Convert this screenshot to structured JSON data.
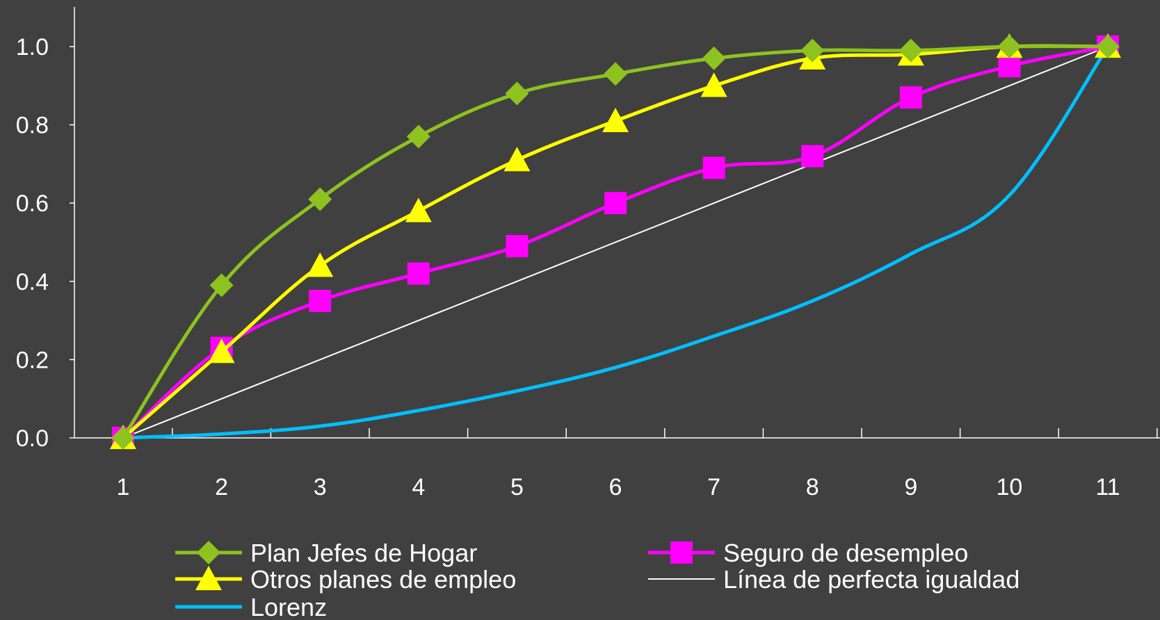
{
  "chart_data": {
    "type": "line",
    "title": "",
    "xlabel": "",
    "ylabel": "",
    "x": [
      1,
      2,
      3,
      4,
      5,
      6,
      7,
      8,
      9,
      10,
      11
    ],
    "xlim": [
      0.5,
      11.5
    ],
    "ylim": [
      0,
      1.0
    ],
    "yticks": [
      "0.0",
      "0.2",
      "0.4",
      "0.6",
      "0.8",
      "1.0"
    ],
    "xticks": [
      "1",
      "2",
      "3",
      "4",
      "5",
      "6",
      "7",
      "8",
      "9",
      "10",
      "11"
    ],
    "grid": false,
    "legend_placement": "bottom",
    "series": [
      {
        "name": "Plan Jefes de Hogar",
        "color": "#8DC21F",
        "marker": "diamond",
        "values": [
          0.0,
          0.39,
          0.61,
          0.77,
          0.88,
          0.93,
          0.97,
          0.99,
          0.99,
          1.0,
          1.0
        ]
      },
      {
        "name": "Seguro de desempleo",
        "color": "#FF00FF",
        "marker": "square",
        "values": [
          0.0,
          0.23,
          0.35,
          0.42,
          0.49,
          0.6,
          0.69,
          0.72,
          0.87,
          0.95,
          1.0
        ]
      },
      {
        "name": "Otros planes de empleo",
        "color": "#FFFF00",
        "marker": "triangle",
        "values": [
          0.0,
          0.22,
          0.44,
          0.58,
          0.71,
          0.81,
          0.9,
          0.97,
          0.98,
          1.0,
          1.0
        ]
      },
      {
        "name": "Línea de perfecta igualdad",
        "color": "#FFFFFF",
        "marker": "none",
        "values": [
          0.0,
          0.1,
          0.2,
          0.3,
          0.4,
          0.5,
          0.6,
          0.7,
          0.8,
          0.9,
          1.0
        ]
      },
      {
        "name": "Lorenz",
        "color": "#00BFFF",
        "marker": "none",
        "values": [
          0.0,
          0.01,
          0.03,
          0.07,
          0.12,
          0.18,
          0.26,
          0.35,
          0.47,
          0.62,
          1.0
        ]
      }
    ]
  }
}
